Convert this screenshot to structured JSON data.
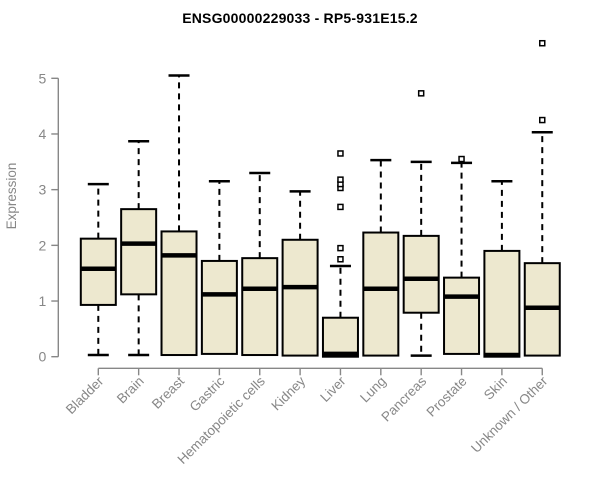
{
  "chart_data": {
    "type": "boxplot",
    "title": "ENSG00000229033 - RP5-931E15.2",
    "ylabel": "Expression",
    "xlabel": "",
    "yticks": [
      0,
      1,
      2,
      3,
      4,
      5
    ],
    "ylim": [
      0,
      5.7
    ],
    "grid": false,
    "legend": "none",
    "categories": [
      "Bladder",
      "Brain",
      "Breast",
      "Gastric",
      "Hematopoietic cells",
      "Kidney",
      "Liver",
      "Lung",
      "Pancreas",
      "Prostate",
      "Skin",
      "Unknown / Other"
    ],
    "boxes": [
      {
        "category": "Bladder",
        "low": 0.03,
        "q1": 0.93,
        "median": 1.58,
        "q3": 2.12,
        "high": 3.1,
        "outliers": []
      },
      {
        "category": "Brain",
        "low": 0.03,
        "q1": 1.12,
        "median": 2.03,
        "q3": 2.65,
        "high": 3.87,
        "outliers": []
      },
      {
        "category": "Breast",
        "low": 0.03,
        "q1": 0.03,
        "median": 1.82,
        "q3": 2.25,
        "high": 5.05,
        "outliers": []
      },
      {
        "category": "Gastric",
        "low": 0.05,
        "q1": 0.05,
        "median": 1.12,
        "q3": 1.72,
        "high": 3.15,
        "outliers": []
      },
      {
        "category": "Hematopoietic cells",
        "low": 0.03,
        "q1": 0.03,
        "median": 1.22,
        "q3": 1.77,
        "high": 3.3,
        "outliers": []
      },
      {
        "category": "Kidney",
        "low": 0.02,
        "q1": 0.02,
        "median": 1.25,
        "q3": 2.1,
        "high": 2.97,
        "outliers": []
      },
      {
        "category": "Liver",
        "low": 0.0,
        "q1": 0.0,
        "median": 0.05,
        "q3": 0.7,
        "high": 1.63,
        "outliers": [
          1.75,
          1.95,
          2.69,
          3.03,
          3.1,
          3.18,
          3.65
        ]
      },
      {
        "category": "Lung",
        "low": 0.02,
        "q1": 0.02,
        "median": 1.22,
        "q3": 2.23,
        "high": 3.53,
        "outliers": []
      },
      {
        "category": "Pancreas",
        "low": 0.02,
        "q1": 0.79,
        "median": 1.4,
        "q3": 2.17,
        "high": 3.5,
        "outliers": [
          4.73
        ]
      },
      {
        "category": "Prostate",
        "low": 0.05,
        "q1": 0.05,
        "median": 1.08,
        "q3": 1.42,
        "high": 3.48,
        "outliers": [
          3.55
        ]
      },
      {
        "category": "Skin",
        "low": 0.0,
        "q1": 0.0,
        "median": 0.03,
        "q3": 1.9,
        "high": 3.15,
        "outliers": []
      },
      {
        "category": "Unknown / Other",
        "low": 0.02,
        "q1": 0.02,
        "median": 0.88,
        "q3": 1.68,
        "high": 4.03,
        "outliers": [
          4.25,
          5.63
        ]
      }
    ],
    "colors": {
      "box_fill": "#EDE8CF",
      "box_stroke": "#000000",
      "median": "#000000",
      "whisker": "#000000",
      "outlier_stroke": "#000000",
      "axis": "#878787",
      "tick_label": "#878787",
      "category_label": "#878787",
      "title": "#000000",
      "background": "#FFFFFF"
    }
  }
}
